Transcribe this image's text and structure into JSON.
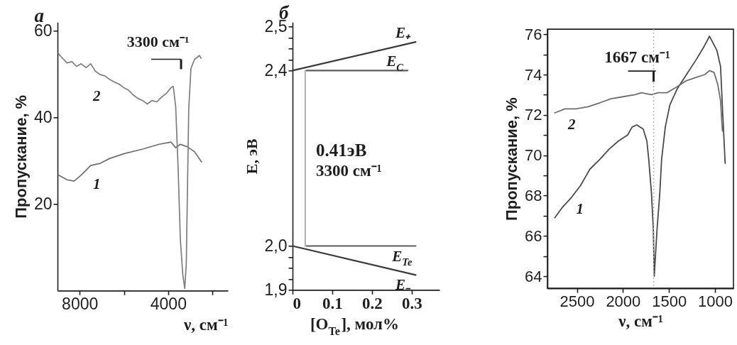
{
  "chart_data": [
    {
      "type": "line",
      "title": "а",
      "xlabel": "ν, см⁻¹",
      "ylabel": "Пропускание, %",
      "xlim": [
        9000,
        1300
      ],
      "xticks": [
        8000,
        {
          "value": 6000,
          "label": null
        },
        4000,
        {
          "value": 2000,
          "label": null
        }
      ],
      "ylim": [
        0,
        62
      ],
      "yticks": [
        20,
        40,
        60
      ],
      "series": [
        {
          "name": "1",
          "color": "#6f6f6f",
          "x": [
            8960,
            8570,
            8250,
            7930,
            7500,
            7070,
            6650,
            6010,
            5150,
            4410,
            3870,
            3660,
            3450,
            3130,
            2810,
            2490
          ],
          "values": [
            26.7,
            25.6,
            25.3,
            26.7,
            28.9,
            29.4,
            30.5,
            31.6,
            32.7,
            33.8,
            34.3,
            33.0,
            33.8,
            33.2,
            32.1,
            29.7
          ]
        },
        {
          "name": "2",
          "color": "#7d7d7d",
          "x": [
            8960,
            8890,
            8570,
            8350,
            8140,
            7930,
            7710,
            7500,
            7290,
            7070,
            6860,
            6650,
            6430,
            6220,
            6010,
            5790,
            5580,
            5370,
            5150,
            4940,
            4730,
            4510,
            4300,
            4090,
            3870,
            3770,
            3660,
            3550,
            3450,
            3340,
            3250,
            3180,
            3130,
            3070,
            2970,
            2810,
            2590,
            2510
          ],
          "values": [
            54.8,
            54.3,
            52.6,
            52.9,
            51.8,
            52.4,
            51.5,
            52.4,
            50.7,
            49.9,
            49.6,
            48.8,
            48.2,
            47.7,
            46.9,
            46.3,
            45.2,
            44.4,
            43.9,
            43.1,
            43.9,
            43.6,
            44.7,
            45.5,
            46.9,
            47.2,
            42.5,
            28.3,
            11.9,
            3.7,
            0.5,
            6.4,
            22.8,
            42.0,
            51.3,
            53.4,
            54.3,
            53.7
          ]
        }
      ],
      "annotations": [
        "3300 см⁻¹"
      ]
    },
    {
      "type": "line",
      "title": "б",
      "xlabel": "[O$_{Te}$], мол%",
      "ylabel": "E, эВ",
      "xlim": [
        0,
        0.37
      ],
      "xticks": [
        0,
        0.1,
        0.2,
        0.3
      ],
      "ylim": [
        1.9,
        2.51
      ],
      "yticks": [
        {
          "value": 1.9,
          "label": "1,9"
        },
        {
          "value": 1.925,
          "label": null
        },
        {
          "value": 1.95,
          "label": null
        },
        {
          "value": 1.975,
          "label": null
        },
        {
          "value": 2.0,
          "label": "2,0"
        },
        {
          "value": 2.4,
          "label": "2,4"
        },
        {
          "value": 2.425,
          "label": null
        },
        {
          "value": 2.45,
          "label": null
        },
        {
          "value": 2.475,
          "label": null
        },
        {
          "value": 2.5,
          "label": "2,5"
        }
      ],
      "series": [
        {
          "name": "E₊",
          "color": "#3a3a3a",
          "x": [
            0,
            0.31
          ],
          "values": [
            2.4,
            2.465
          ]
        },
        {
          "name": "E$_{C}$",
          "color": "#5c5c5c",
          "x": [
            0.035,
            0.29
          ],
          "values": [
            2.4,
            2.4
          ]
        },
        {
          "name": "E$_{Te}$",
          "color": "#5c5c5c",
          "x": [
            0.035,
            0.31
          ],
          "values": [
            2.0,
            2.0
          ]
        },
        {
          "name": "E₋",
          "color": "#3a3a3a",
          "x": [
            0,
            0.31
          ],
          "values": [
            2.0,
            1.934
          ]
        },
        {
          "color": "#b5b5b5",
          "x": [
            0.032,
            0.032
          ],
          "values": [
            2.0,
            2.4
          ]
        }
      ],
      "annotations": [
        "0.41эВ",
        "3300 см⁻¹"
      ]
    },
    {
      "type": "line",
      "xlabel": "ν, см⁻¹",
      "ylabel": "Пропускание, %",
      "xlim": [
        2820,
        800
      ],
      "xticks": [
        2500,
        2000,
        1500,
        1000
      ],
      "ylim": [
        63.4,
        76.25
      ],
      "yticks": [
        64,
        {
          "value": 65,
          "label": null
        },
        66,
        {
          "value": 67,
          "label": null
        },
        68,
        {
          "value": 69,
          "label": null
        },
        70,
        {
          "value": 71,
          "label": null
        },
        72,
        {
          "value": 73,
          "label": null
        },
        74,
        {
          "value": 75,
          "label": null
        },
        76
      ],
      "ref_lines": [
        {
          "axis": "x",
          "value": 1667,
          "label": "1667 см⁻¹",
          "color": "#b0b0b0",
          "line_style": "dotted"
        }
      ],
      "series": [
        {
          "name": "1",
          "color": "#4a4a4a",
          "x": [
            2740,
            2660,
            2560,
            2460,
            2410,
            2360,
            2250,
            2150,
            2050,
            1950,
            1900,
            1850,
            1780,
            1740,
            1720,
            1690,
            1670,
            1660,
            1630,
            1600,
            1580,
            1540,
            1490,
            1410,
            1310,
            1210,
            1130,
            1060,
            980,
            940,
            920,
            890
          ],
          "values": [
            66.9,
            67.4,
            67.9,
            68.5,
            68.9,
            69.3,
            69.8,
            70.3,
            70.7,
            71.0,
            71.4,
            71.5,
            71.3,
            70.7,
            69.8,
            68.1,
            66.3,
            64.0,
            66.3,
            68.1,
            69.8,
            71.4,
            72.5,
            73.3,
            74.0,
            74.7,
            75.3,
            75.9,
            75.2,
            74.4,
            72.4,
            69.6
          ]
        },
        {
          "name": "2",
          "color": "#6e6e6e",
          "x": [
            2740,
            2630,
            2510,
            2380,
            2250,
            2130,
            2000,
            1870,
            1800,
            1690,
            1620,
            1520,
            1410,
            1310,
            1180,
            1110,
            1060,
            1010,
            970,
            940,
            920
          ],
          "values": [
            72.1,
            72.3,
            72.3,
            72.4,
            72.6,
            72.8,
            72.9,
            73.0,
            73.1,
            73.0,
            73.1,
            73.1,
            73.4,
            73.7,
            73.9,
            74.0,
            74.2,
            74.1,
            73.5,
            72.7,
            71.2
          ]
        }
      ]
    }
  ]
}
